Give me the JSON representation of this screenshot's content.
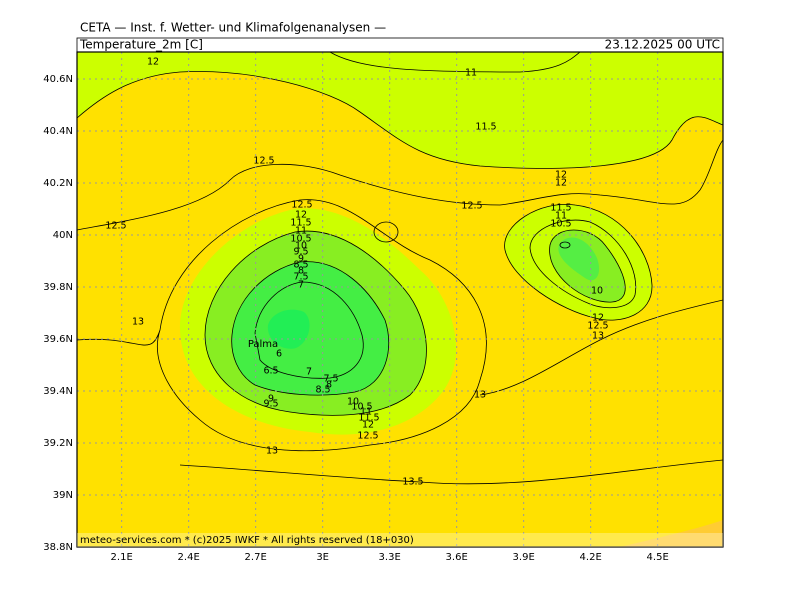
{
  "header": {
    "title": "CETA — Inst. f. Wetter- und Klimafolgenanalysen —",
    "variable": "Temperature_2m [C]",
    "valid_time": "23.12.2025 00 UTC"
  },
  "longitude_ticks": [
    {
      "value": 2.1,
      "label": "2.1E"
    },
    {
      "value": 2.4,
      "label": "2.4E"
    },
    {
      "value": 2.7,
      "label": "2.7E"
    },
    {
      "value": 3.0,
      "label": "3E"
    },
    {
      "value": 3.3,
      "label": "3.3E"
    },
    {
      "value": 3.6,
      "label": "3.6E"
    },
    {
      "value": 3.9,
      "label": "3.9E"
    },
    {
      "value": 4.2,
      "label": "4.2E"
    },
    {
      "value": 4.5,
      "label": "4.5E"
    }
  ],
  "latitude_ticks": [
    {
      "value": 40.6,
      "label": "40.6N"
    },
    {
      "value": 40.4,
      "label": "40.4N"
    },
    {
      "value": 40.2,
      "label": "40.2N"
    },
    {
      "value": 40.0,
      "label": "40N"
    },
    {
      "value": 39.8,
      "label": "39.8N"
    },
    {
      "value": 39.6,
      "label": "39.6N"
    },
    {
      "value": 39.4,
      "label": "39.4N"
    },
    {
      "value": 39.2,
      "label": "39.2N"
    },
    {
      "value": 39.0,
      "label": "39N"
    },
    {
      "value": 38.8,
      "label": "38.8N"
    }
  ],
  "place_label": "Palma",
  "contour_labels": [
    "12",
    "11",
    "11.5",
    "12.5",
    "12",
    "12",
    "12.5",
    "12.5",
    "12.5",
    "12",
    "11.5",
    "11",
    "10.5",
    "10",
    "9.5",
    "9",
    "8.5",
    "8",
    "7.5",
    "7",
    "11.5",
    "11",
    "10.5",
    "10",
    "12",
    "12.5",
    "13",
    "13",
    "6",
    "6.5",
    "7",
    "7.5",
    "8",
    "8.5",
    "9",
    "9.5",
    "10",
    "10.5",
    "11",
    "11.5",
    "12",
    "12.5",
    "13",
    "13",
    "13.5"
  ],
  "footer": "meteo-services.com * (c)2025 IWKF * All rights reserved (18+030)"
}
